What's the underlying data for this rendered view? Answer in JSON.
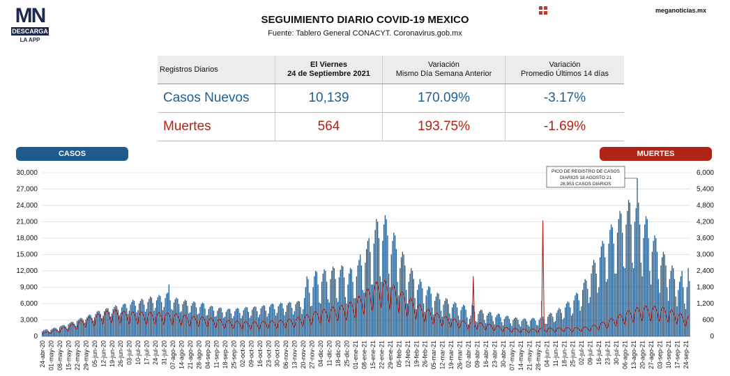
{
  "header": {
    "title": "SEGUIMIENTO DIARIO COVID-19 MEXICO",
    "source": "Fuente: Tablero General CONACYT. Coronavirus.gob.mx",
    "site": "meganoticias.mx",
    "logo_mark": "MN",
    "logo_download": "DESCARGA",
    "logo_app": "LA APP"
  },
  "summary_table": {
    "headers": [
      "Registros Diarios",
      "El Viernes\n24 de Septiembre 2021",
      "Variación\nMismo Día Semana Anterior",
      "Variación\nPromedio Últimos 14 días"
    ],
    "rows": [
      {
        "label": "Casos Nuevos",
        "value": "10,139",
        "var_week": "170.09%",
        "var_14": "-3.17%"
      },
      {
        "label": "Muertes",
        "value": "564",
        "var_week": "193.75%",
        "var_14": "-1.69%"
      }
    ]
  },
  "colors": {
    "cases": "#1e5a8c",
    "deaths": "#b02417"
  },
  "chart_data": {
    "type": "bar",
    "left_axis_label": "CASOS",
    "right_axis_label": "MUERTES",
    "ylim_left": [
      0,
      30000
    ],
    "ylim_right": [
      0,
      6000
    ],
    "left_ticks": [
      "30,000",
      "27,000",
      "24,000",
      "21,000",
      "18,000",
      "15,000",
      "12,000",
      "9,000",
      "6,000",
      "3,000",
      "0"
    ],
    "right_ticks": [
      "6,000",
      "5,400",
      "4,800",
      "4,200",
      "3,600",
      "3,000",
      "2,400",
      "1,800",
      "1,200",
      "600",
      "0"
    ],
    "x_tick_labels": [
      "24-abr-20",
      "01-may-20",
      "08-may-20",
      "15-may-20",
      "22-may-20",
      "29-may-20",
      "05-jun-20",
      "12-jun-20",
      "19-jun-20",
      "26-jun-20",
      "03-jul-20",
      "10-jul-20",
      "17-jul-20",
      "24-jul-20",
      "31-jul-20",
      "07-ago-20",
      "14-ago-20",
      "21-ago-20",
      "28-ago-20",
      "04-sep-20",
      "11-sep-20",
      "18-sep-20",
      "25-sep-20",
      "02-oct-20",
      "09-oct-20",
      "16-oct-20",
      "23-oct-20",
      "30-oct-20",
      "06-nov-20",
      "13-nov-20",
      "20-nov-20",
      "27-nov-20",
      "04-dic-20",
      "11-dic-20",
      "18-dic-20",
      "25-dic-20",
      "01-ene-21",
      "08-ene-21",
      "15-ene-21",
      "22-ene-21",
      "29-ene-21",
      "05-feb-21",
      "12-feb-21",
      "19-feb-21",
      "26-feb-21",
      "05-mar-21",
      "12-mar-21",
      "19-mar-21",
      "26-mar-21",
      "02-abr-21",
      "09-abr-21",
      "16-abr-21",
      "23-abr-21",
      "30-abr-21",
      "07-may-21",
      "14-may-21",
      "21-may-21",
      "28-may-21",
      "04-jun-21",
      "11-jun-21",
      "18-jun-21",
      "25-jun-21",
      "02-jul-21",
      "09-jul-21",
      "16-jul-21",
      "23-jul-21",
      "30-jul-21",
      "06-ago-21",
      "13-ago-21",
      "20-ago-21",
      "27-ago-21",
      "03-sep-21",
      "10-sep-21",
      "17-sep-21",
      "24-sep-21"
    ],
    "weekly_cases": [
      [
        900,
        1100,
        1200,
        1300,
        1250,
        1000,
        800
      ],
      [
        1200,
        1400,
        1500,
        1600,
        1500,
        1300,
        1000
      ],
      [
        1700,
        1900,
        2000,
        2100,
        2000,
        1800,
        1400
      ],
      [
        2200,
        2400,
        2600,
        2700,
        2600,
        2300,
        1900
      ],
      [
        2800,
        3000,
        3200,
        3400,
        3300,
        3000,
        2500
      ],
      [
        3100,
        3500,
        3800,
        4000,
        3900,
        3400,
        2900
      ],
      [
        3500,
        4100,
        4500,
        4700,
        4600,
        4100,
        3300
      ],
      [
        3800,
        4600,
        5000,
        5200,
        5100,
        4500,
        3600
      ],
      [
        4200,
        5000,
        5400,
        5700,
        5500,
        4900,
        3900
      ],
      [
        4300,
        5300,
        5800,
        6000,
        5900,
        5200,
        4100
      ],
      [
        4700,
        5800,
        6300,
        6700,
        6500,
        5600,
        4400
      ],
      [
        4800,
        6000,
        6500,
        6900,
        6700,
        5800,
        4500
      ],
      [
        5000,
        6300,
        6900,
        7300,
        7100,
        6100,
        4700
      ],
      [
        5200,
        6600,
        7200,
        7600,
        7400,
        6300,
        4800
      ],
      [
        5400,
        7000,
        7800,
        8000,
        9500,
        6600,
        5000
      ],
      [
        4800,
        6200,
        6800,
        7100,
        6900,
        5900,
        4400
      ],
      [
        4600,
        5900,
        6400,
        6700,
        6500,
        5600,
        4200
      ],
      [
        4400,
        5600,
        6100,
        6400,
        6200,
        5300,
        4000
      ],
      [
        4200,
        5400,
        5900,
        6200,
        6000,
        5100,
        3800
      ],
      [
        3900,
        5000,
        5400,
        5600,
        5500,
        4700,
        3600
      ],
      [
        3700,
        4700,
        5100,
        5300,
        5200,
        4400,
        3400
      ],
      [
        3600,
        4500,
        4900,
        5100,
        5000,
        4200,
        3300
      ],
      [
        3700,
        4600,
        5000,
        5200,
        5100,
        4300,
        3300
      ],
      [
        3800,
        4800,
        5200,
        5400,
        5300,
        4500,
        3400
      ],
      [
        3800,
        4900,
        5300,
        5500,
        5400,
        4600,
        3500
      ],
      [
        4000,
        5100,
        5500,
        5700,
        5600,
        4700,
        3600
      ],
      [
        4200,
        5400,
        5800,
        6000,
        5900,
        5000,
        3800
      ],
      [
        4300,
        5500,
        5900,
        6200,
        6000,
        5100,
        3900
      ],
      [
        4500,
        5700,
        6100,
        6300,
        6200,
        5200,
        4000
      ],
      [
        4600,
        5900,
        6300,
        6500,
        6400,
        5400,
        4100
      ],
      [
        5000,
        7000,
        9000,
        11000,
        10500,
        8000,
        5500
      ],
      [
        5600,
        9000,
        11000,
        12000,
        11800,
        9500,
        6200
      ],
      [
        6000,
        10000,
        11500,
        12300,
        12000,
        10000,
        6800
      ],
      [
        6200,
        10500,
        12000,
        12800,
        12500,
        10500,
        7000
      ],
      [
        6300,
        10800,
        12200,
        13000,
        12800,
        10800,
        7200
      ],
      [
        6000,
        9500,
        11500,
        12500,
        12300,
        10000,
        7000
      ],
      [
        7000,
        11000,
        13000,
        14000,
        15000,
        13000,
        8500
      ],
      [
        8000,
        13500,
        16000,
        17500,
        18000,
        15500,
        9500
      ],
      [
        9500,
        17000,
        19500,
        21500,
        21000,
        18000,
        11000
      ],
      [
        10000,
        17500,
        20500,
        22200,
        21500,
        18500,
        11500
      ],
      [
        9000,
        15000,
        17500,
        19000,
        18500,
        16000,
        10000
      ],
      [
        7500,
        12500,
        14500,
        15500,
        15000,
        13000,
        8500
      ],
      [
        6000,
        10000,
        11500,
        12500,
        12000,
        10500,
        7000
      ],
      [
        5000,
        8500,
        9500,
        10500,
        10000,
        8800,
        6000
      ],
      [
        4500,
        7500,
        8500,
        9200,
        9000,
        7800,
        5300
      ],
      [
        4000,
        6500,
        7300,
        8000,
        7800,
        6800,
        4700
      ],
      [
        3600,
        5800,
        6500,
        7000,
        6800,
        5900,
        4200
      ],
      [
        3300,
        5300,
        5900,
        6300,
        6100,
        5300,
        3800
      ],
      [
        3000,
        4800,
        5400,
        5800,
        5600,
        4900,
        3500
      ],
      [
        2200,
        3200,
        3800,
        5800,
        5600,
        4500,
        2800
      ],
      [
        2600,
        4100,
        4600,
        4900,
        4800,
        4200,
        3000
      ],
      [
        2400,
        3800,
        4200,
        4500,
        4400,
        3800,
        2800
      ],
      [
        2200,
        3500,
        3900,
        4200,
        4100,
        3500,
        2600
      ],
      [
        2000,
        3200,
        3600,
        3800,
        3700,
        3200,
        2400
      ],
      [
        1900,
        3000,
        3300,
        3500,
        3400,
        3000,
        2200
      ],
      [
        1800,
        2800,
        3100,
        3300,
        3200,
        2800,
        2100
      ],
      [
        1800,
        2900,
        3200,
        3400,
        3300,
        2900,
        2100
      ],
      [
        2000,
        3000,
        3400,
        6500,
        3600,
        3100,
        2300
      ],
      [
        2300,
        3600,
        4000,
        4300,
        4200,
        3600,
        2600
      ],
      [
        2800,
        4300,
        4800,
        5200,
        5000,
        4300,
        3100
      ],
      [
        3400,
        5300,
        6000,
        6400,
        6200,
        5300,
        3800
      ],
      [
        4200,
        6600,
        7500,
        8000,
        7800,
        6600,
        4700
      ],
      [
        5500,
        8500,
        9800,
        10500,
        10200,
        8700,
        6100
      ],
      [
        7200,
        11500,
        13000,
        14000,
        13500,
        11500,
        8000
      ],
      [
        9000,
        14500,
        16500,
        17500,
        17000,
        14500,
        10000
      ],
      [
        10500,
        17000,
        19500,
        20500,
        20000,
        17000,
        11500
      ],
      [
        11500,
        19000,
        21500,
        23000,
        22500,
        19000,
        12800
      ],
      [
        12500,
        20500,
        23000,
        25000,
        24500,
        20500,
        13500
      ],
      [
        12500,
        21000,
        23500,
        28953,
        24500,
        20500,
        13500
      ],
      [
        11000,
        18000,
        20500,
        22000,
        21500,
        18000,
        12000
      ],
      [
        9500,
        15500,
        17500,
        18500,
        18000,
        15500,
        10500
      ],
      [
        8000,
        13000,
        14500,
        15500,
        15000,
        13000,
        9000
      ],
      [
        6500,
        10500,
        12000,
        13000,
        12500,
        10500,
        7300
      ],
      [
        5500,
        8500,
        10000,
        11000,
        12000,
        9000,
        6000
      ],
      [
        5000,
        9000,
        12500,
        10139
      ]
    ],
    "deaths_weekly_avg": [
      100,
      160,
      230,
      320,
      420,
      530,
      620,
      720,
      800,
      760,
      720,
      730,
      720,
      710,
      700,
      690,
      650,
      600,
      580,
      560,
      520,
      480,
      460,
      440,
      430,
      440,
      460,
      470,
      500,
      530,
      600,
      700,
      780,
      850,
      900,
      950,
      1100,
      1300,
      1550,
      1700,
      1600,
      1400,
      1200,
      1000,
      850,
      720,
      620,
      540,
      480,
      430,
      420,
      380,
      330,
      280,
      240,
      220,
      210,
      230,
      250,
      250,
      260,
      260,
      270,
      300,
      380,
      480,
      600,
      720,
      820,
      900,
      900,
      880,
      820,
      720,
      600
    ],
    "deaths_spikes": [
      {
        "date": "06-abr-21",
        "value": 2200
      },
      {
        "date": "01-jun-21",
        "value": 4250
      }
    ],
    "annotation": "PICO DE REGISTRO DE CASOS\nDIARIOS 18 AGOSTO 21\n28,953 CASOS DIARIOS"
  }
}
